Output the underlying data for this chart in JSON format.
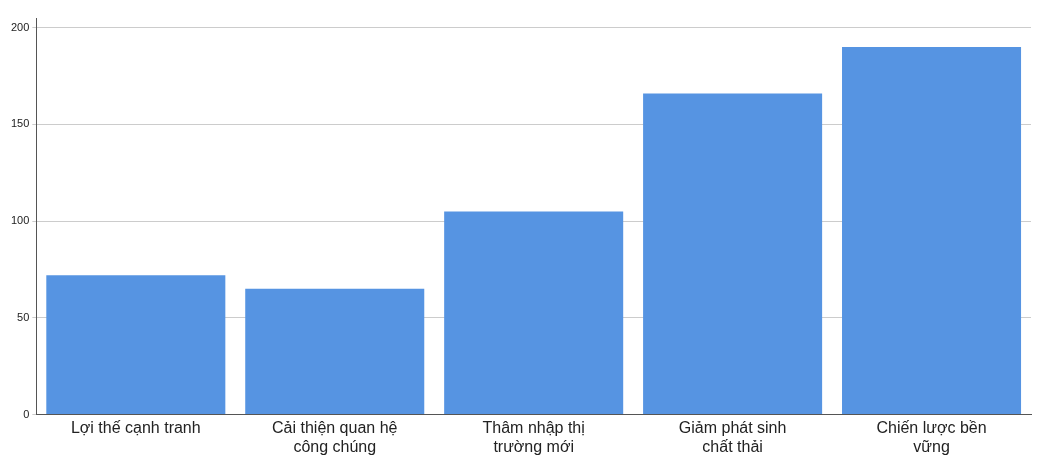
{
  "chart_data": {
    "type": "bar",
    "categories": [
      "Lợi thế cạnh tranh",
      "Cải thiện quan hệ công chúng",
      "Thâm nhập thị trường mới",
      "Giảm phát sinh chất thải",
      "Chiến lược bền vững"
    ],
    "values": [
      72,
      65,
      105,
      166,
      190
    ],
    "color": "#5694e2",
    "ylim": [
      0,
      205
    ],
    "yticks": [
      0,
      50,
      100,
      150,
      200
    ],
    "grid": "y",
    "legend": false
  }
}
